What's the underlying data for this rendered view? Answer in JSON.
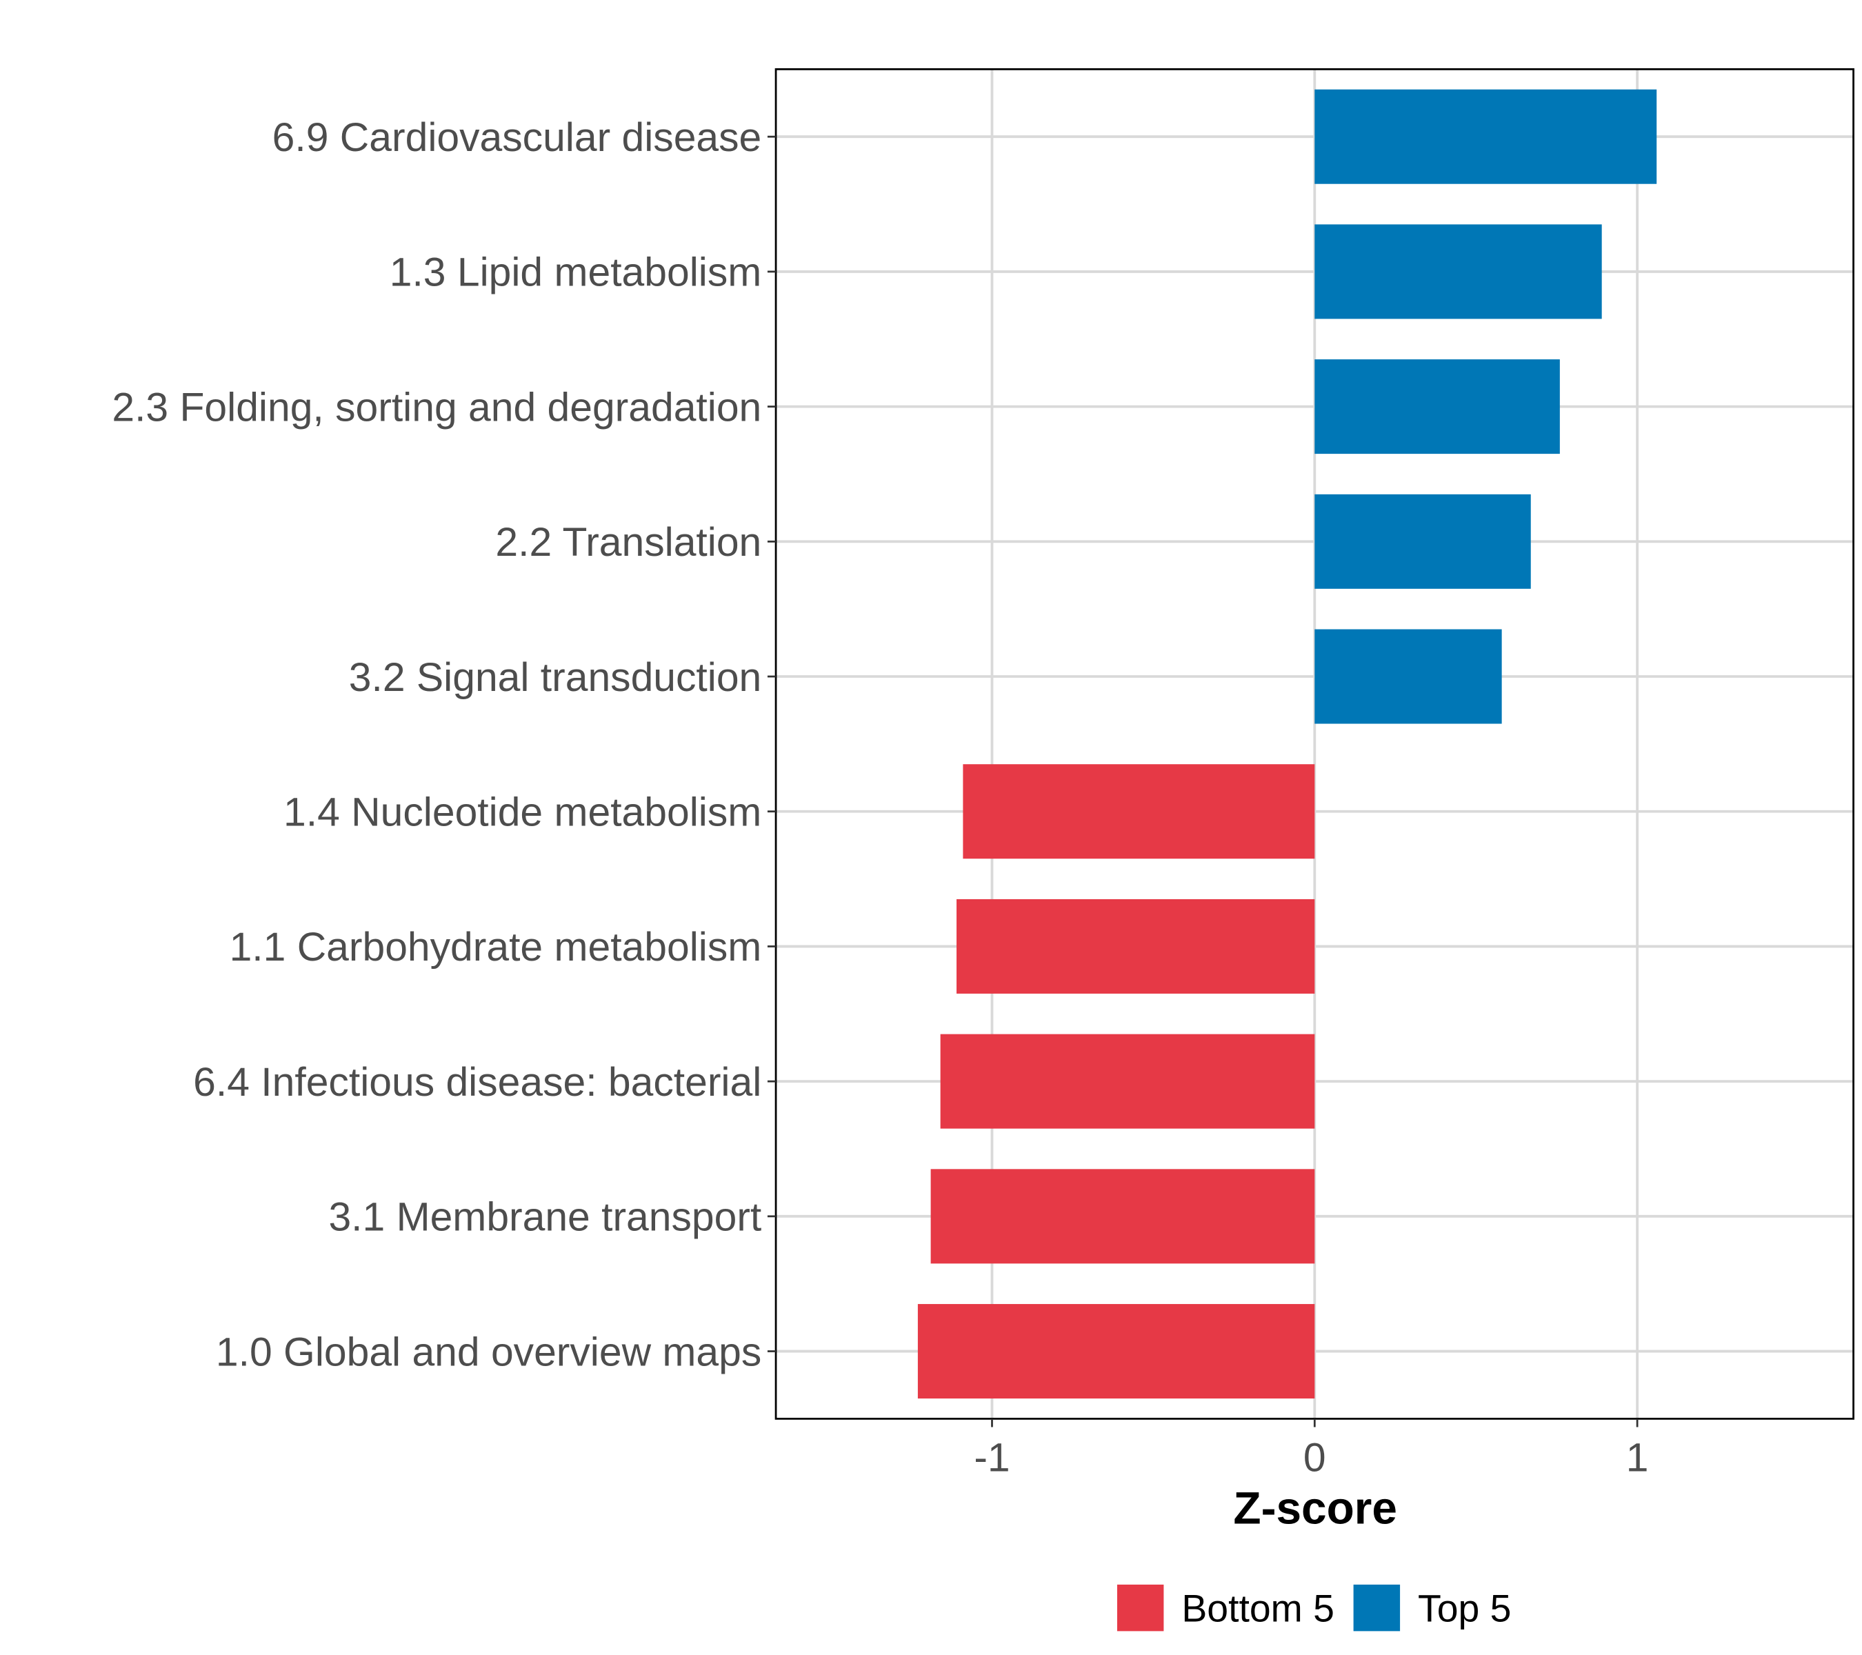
{
  "chart_data": {
    "type": "bar",
    "orientation": "horizontal",
    "title": "",
    "xlabel": "Z-score",
    "ylabel": "",
    "xlim": [
      -1.67,
      1.67
    ],
    "xticks": [
      -1,
      0,
      1
    ],
    "xtick_labels": [
      "-1",
      "0",
      "1"
    ],
    "grid": true,
    "categories": [
      "6.9 Cardiovascular disease",
      "1.3 Lipid metabolism",
      "2.3 Folding, sorting and degradation",
      "2.2 Translation",
      "3.2 Signal transduction",
      "1.4 Nucleotide metabolism",
      "1.1 Carbohydrate metabolism",
      "6.4 Infectious disease: bacterial",
      "3.1 Membrane transport",
      "1.0 Global and overview maps"
    ],
    "values": [
      1.06,
      0.89,
      0.76,
      0.67,
      0.58,
      -1.09,
      -1.11,
      -1.16,
      -1.19,
      -1.23
    ],
    "groups": [
      "Top 5",
      "Top 5",
      "Top 5",
      "Top 5",
      "Top 5",
      "Bottom 5",
      "Bottom 5",
      "Bottom 5",
      "Bottom 5",
      "Bottom 5"
    ],
    "legend": {
      "placement": "bottom",
      "entries": [
        {
          "label": "Bottom 5",
          "color": "#E63946"
        },
        {
          "label": "Top 5",
          "color": "#0077B6"
        }
      ]
    }
  }
}
